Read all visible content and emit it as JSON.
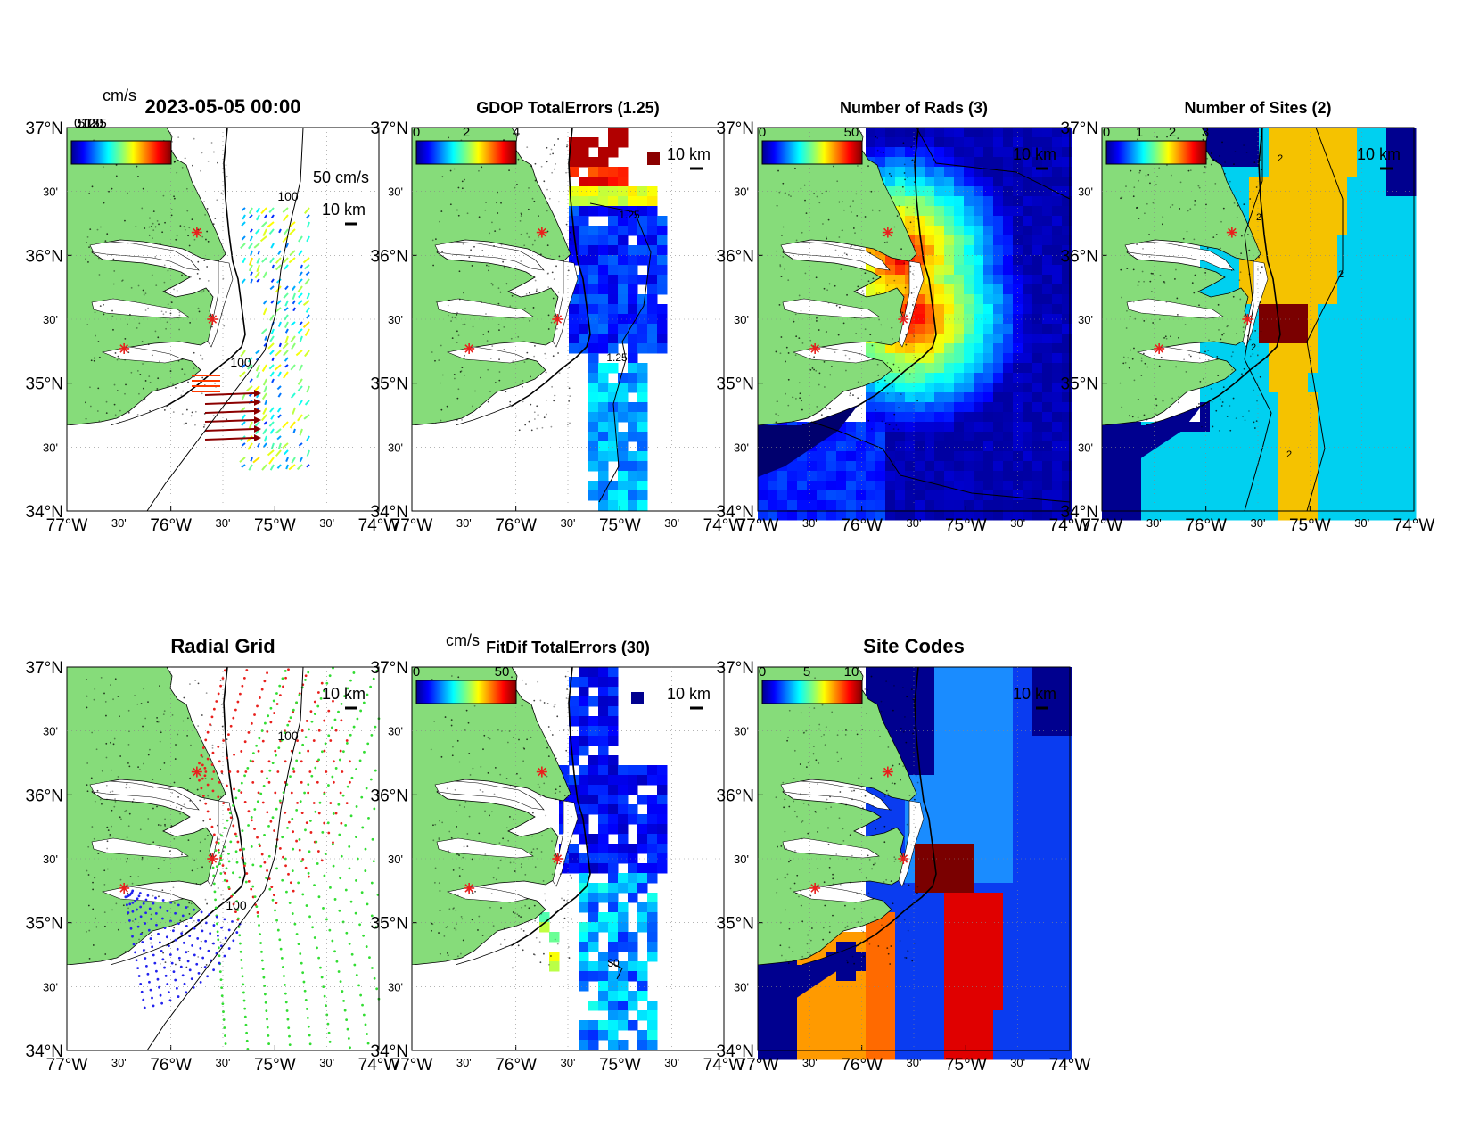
{
  "figure": {
    "timestamp": "2023-05-05 00:00",
    "colors": {
      "land": "#86dc7a",
      "ocean": "#ffffff",
      "site_marker": "#e8201c",
      "frame": "#000000"
    }
  },
  "axes_ticks": {
    "lat_major": [
      "37°N",
      "36°N",
      "35°N",
      "34°N"
    ],
    "lat_minor": [
      "30'",
      "30'",
      "30'"
    ],
    "lon_major": [
      "77°W",
      "76°W",
      "75°W",
      "74°W"
    ],
    "lon_minor": [
      "30'",
      "30'",
      "30'"
    ]
  },
  "panels": [
    {
      "id": "vectors",
      "title": "2023-05-05 00:00",
      "colorbar_unit": "cm/s",
      "colorbar_ticks": [
        "0",
        "5",
        "10",
        "15",
        "20",
        "25"
      ],
      "scale_label": "50 cm/s",
      "distance_label": "10 km",
      "contour_label": "100"
    },
    {
      "id": "gdop",
      "title": "GDOP TotalErrors (1.25)",
      "colorbar_ticks": [
        "0",
        "2",
        "4"
      ],
      "distance_label": "10 km",
      "contour_label": "1.25"
    },
    {
      "id": "rads",
      "title": "Number of Rads (3)",
      "colorbar_ticks": [
        "0",
        "50"
      ],
      "distance_label": "10 km"
    },
    {
      "id": "sites",
      "title": "Number of Sites (2)",
      "colorbar_ticks": [
        "0",
        "1",
        "2",
        "3"
      ],
      "distance_label": "10 km",
      "contour_label": "2"
    },
    {
      "id": "radial",
      "title": "Radial Grid",
      "distance_label": "10 km",
      "contour_label": "100"
    },
    {
      "id": "fitdif",
      "title": "FitDif TotalErrors (30)",
      "colorbar_unit": "cm/s",
      "colorbar_ticks": [
        "0",
        "50"
      ],
      "distance_label": "10 km",
      "contour_label": "30"
    },
    {
      "id": "codes",
      "title": "Site Codes",
      "colorbar_ticks": [
        "0",
        "5",
        "10"
      ],
      "distance_label": "10 km"
    }
  ],
  "sites": [
    {
      "lon": -75.75,
      "lat": 36.18
    },
    {
      "lon": -75.6,
      "lat": 35.5
    },
    {
      "lon": -76.45,
      "lat": 35.27
    }
  ]
}
